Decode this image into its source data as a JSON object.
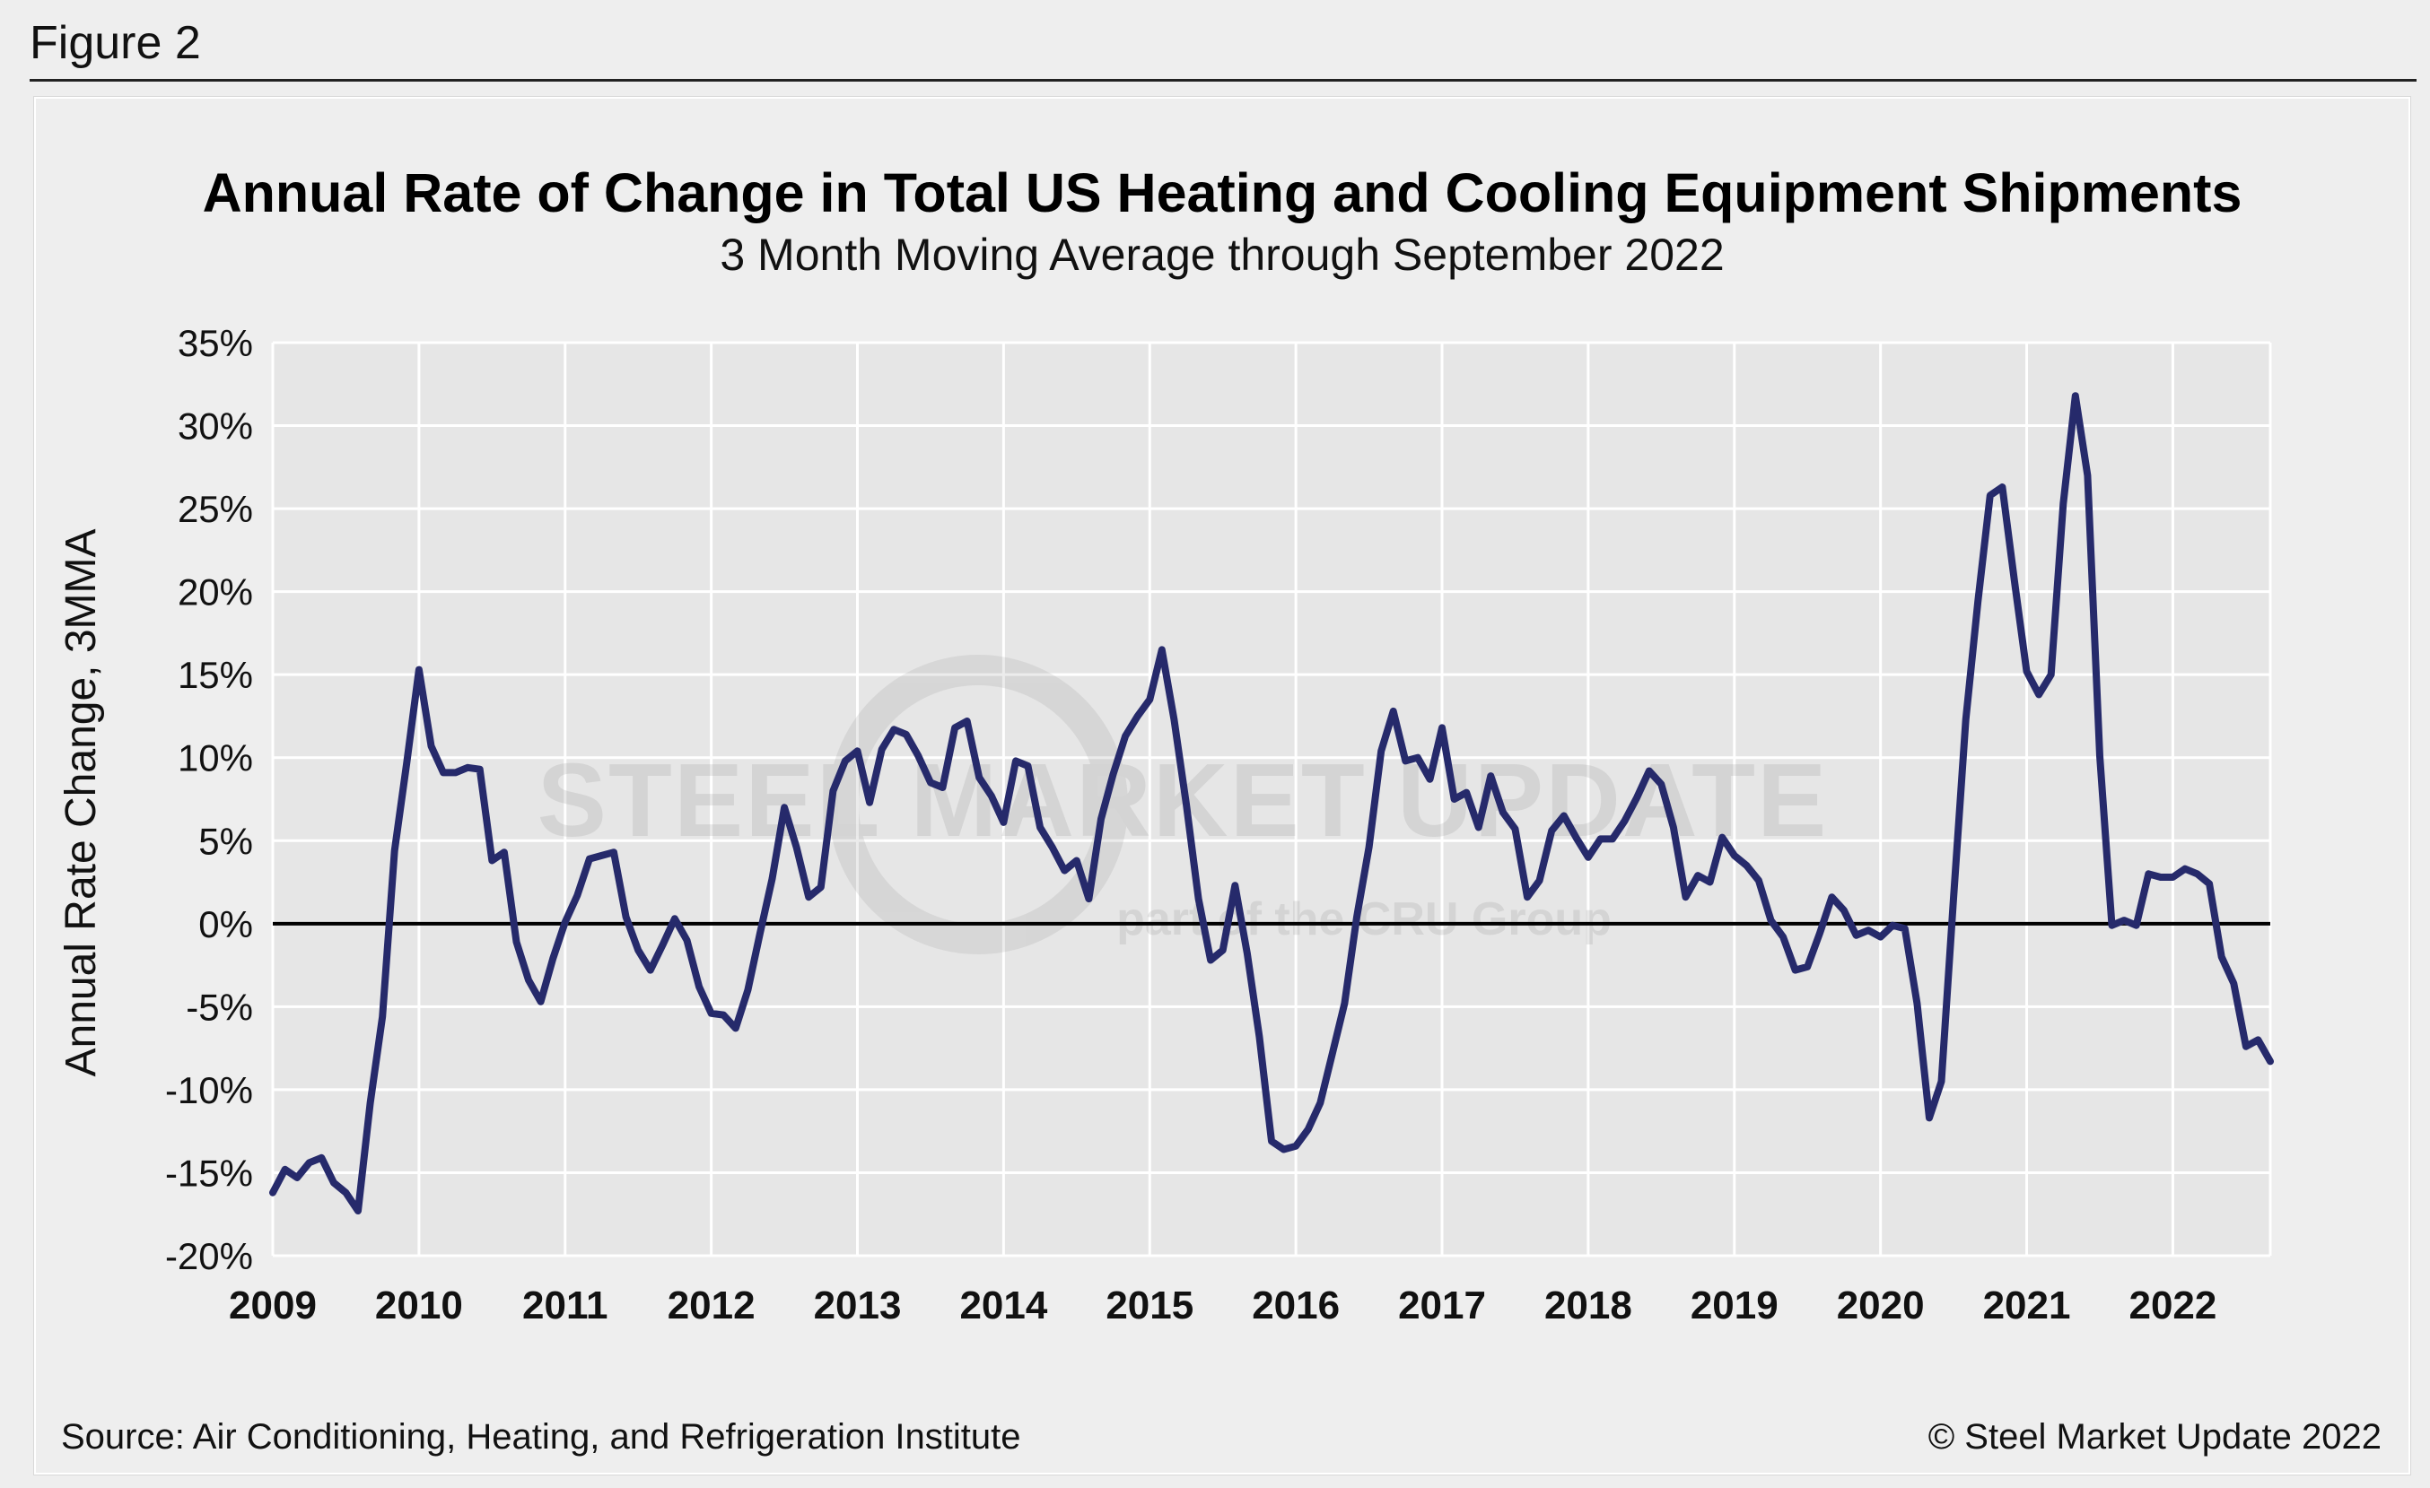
{
  "figure_label": "Figure 2",
  "source": "Source: Air Conditioning, Heating, and Refrigeration Institute",
  "copyright": "© Steel Market Update 2022",
  "watermark": {
    "brand": "STEEL MARKET UPDATE",
    "tagline": "part of the CRU Group"
  },
  "colors": {
    "line": "#262a6b",
    "zero_line": "#000000",
    "plot_bg": "#e6e6e6",
    "grid": "#ffffff"
  },
  "chart_data": {
    "type": "line",
    "title": "Annual Rate of Change in Total US Heating and Cooling Equipment Shipments",
    "subtitle": "3 Month Moving Average through September 2022",
    "xlabel": "",
    "ylabel": "Annual Rate Change, 3MMA",
    "ylim": [
      -20,
      35
    ],
    "y_ticks": [
      35,
      30,
      25,
      20,
      15,
      10,
      5,
      0,
      -5,
      -10,
      -15,
      -20
    ],
    "y_tick_labels": [
      "35%",
      "30%",
      "25%",
      "20%",
      "15%",
      "10%",
      "5%",
      "0%",
      "-5%",
      "-10%",
      "-15%",
      "-20%"
    ],
    "x_tick_labels": [
      "2009",
      "2010",
      "2011",
      "2012",
      "2013",
      "2014",
      "2015",
      "2016",
      "2017",
      "2018",
      "2019",
      "2020",
      "2021",
      "2022"
    ],
    "x_start": "2009-01",
    "x_end": "2022-09",
    "grid": true,
    "series": [
      {
        "values": [
          -16.2,
          -14.8,
          -15.3,
          -14.4,
          -14.1,
          -15.6,
          -16.2,
          -17.3,
          -10.8,
          -5.6,
          4.4,
          9.7,
          15.3,
          10.7,
          9.1,
          9.1,
          9.4,
          9.3,
          3.8,
          4.3,
          -1.1,
          -3.4,
          -4.7,
          -2.1,
          0.1,
          1.7,
          3.9,
          4.1,
          4.3,
          0.4,
          -1.6,
          -2.8,
          -1.3,
          0.3,
          -1.0,
          -3.8,
          -5.4,
          -5.5,
          -6.3,
          -4.0,
          -0.6,
          2.7,
          7.0,
          4.6,
          1.6,
          2.2,
          8.0,
          9.8,
          10.4,
          7.3,
          10.5,
          11.7,
          11.4,
          10.1,
          8.5,
          8.2,
          11.8,
          12.2,
          8.8,
          7.7,
          6.1,
          9.8,
          9.5,
          5.8,
          4.6,
          3.2,
          3.8,
          1.5,
          6.3,
          9.0,
          11.3,
          12.5,
          13.5,
          16.5,
          12.3,
          7.2,
          1.5,
          -2.2,
          -1.6,
          2.3,
          -1.8,
          -6.8,
          -13.1,
          -13.6,
          -13.4,
          -12.4,
          -10.8,
          -7.8,
          -4.8,
          0.4,
          4.6,
          10.4,
          12.8,
          9.8,
          10.0,
          8.7,
          11.8,
          7.5,
          7.9,
          5.8,
          8.9,
          6.7,
          5.7,
          1.6,
          2.6,
          5.6,
          6.5,
          5.2,
          4.0,
          5.1,
          5.1,
          6.2,
          7.6,
          9.2,
          8.4,
          5.8,
          1.6,
          2.9,
          2.5,
          5.2,
          4.1,
          3.5,
          2.6,
          0.2,
          -0.8,
          -2.8,
          -2.6,
          -0.6,
          1.6,
          0.8,
          -0.7,
          -0.4,
          -0.8,
          -0.1,
          -0.3,
          -4.8,
          -11.7,
          -9.5,
          1.6,
          12.3,
          19.4,
          25.8,
          26.3,
          20.6,
          15.2,
          13.8,
          15.0,
          25.3,
          31.8,
          27.0,
          10.1,
          -0.1,
          0.2,
          -0.1,
          3.0,
          2.8,
          2.8,
          3.3,
          3.0,
          2.4,
          -2.0,
          -3.6,
          -7.4,
          -7.0,
          -8.3
        ]
      }
    ]
  }
}
